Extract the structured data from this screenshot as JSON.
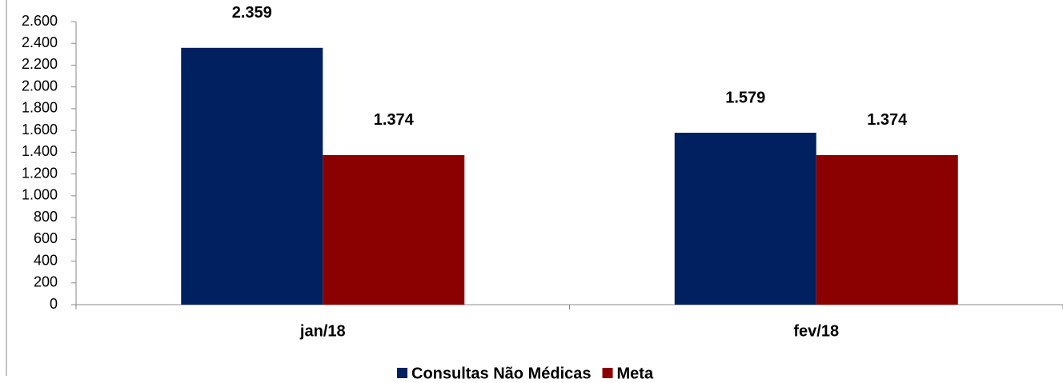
{
  "chart_data": {
    "type": "bar",
    "categories": [
      "jan/18",
      "fev/18"
    ],
    "series": [
      {
        "name": "Consultas Não Médicas",
        "color": "#002060",
        "values": [
          2359,
          1579
        ],
        "value_labels": [
          "2.359",
          "1.579"
        ]
      },
      {
        "name": "Meta",
        "color": "#8b0000",
        "values": [
          1374,
          1374
        ],
        "value_labels": [
          "1.374",
          "1.374"
        ]
      }
    ],
    "ylim": [
      0,
      2600
    ],
    "yticks": [
      0,
      200,
      400,
      600,
      800,
      {
        "value": 1000,
        "label": "1.000"
      },
      {
        "value": 1200,
        "label": "1.200"
      },
      {
        "value": 1400,
        "label": "1.400"
      },
      {
        "value": 1600,
        "label": "1.600"
      },
      {
        "value": 1800,
        "label": "1.800"
      },
      {
        "value": 2000,
        "label": "2.000"
      },
      {
        "value": 2200,
        "label": "2.200"
      },
      {
        "value": 2400,
        "label": "2.400"
      },
      {
        "value": 2600,
        "label": "2.600"
      }
    ],
    "grid": false,
    "legend": "bottom"
  }
}
